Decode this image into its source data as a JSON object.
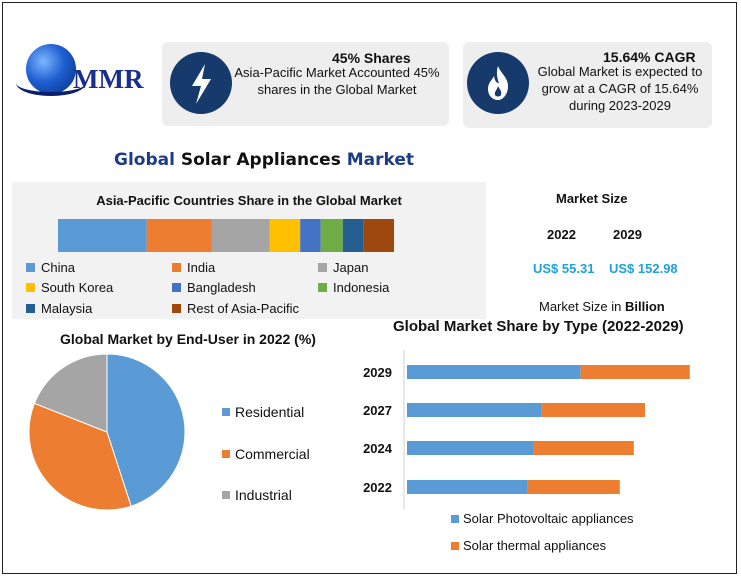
{
  "logo": {
    "text": "MMR"
  },
  "cards": [
    {
      "title": "45% Shares",
      "text": [
        "Asia-Pacific Market Accounted 45%",
        "shares in the Global Market"
      ],
      "icon": "lightning-icon"
    },
    {
      "title": "15.64% CAGR",
      "text": [
        "Global Market is expected to",
        "grow at a CAGR of 15.64%",
        "during 2023-2029"
      ],
      "icon": "flame-icon"
    }
  ],
  "main_title": {
    "part1": "Global",
    "part2": "Solar Appliances",
    "part3": "Market"
  },
  "market_size": {
    "title": "Market Size",
    "years": [
      "2022",
      "2029"
    ],
    "values": [
      "US$ 55.31",
      "US$ 152.98"
    ],
    "unit_label": "Market Size in",
    "unit_bold": "Billion"
  },
  "colors": {
    "blue": "#5b9bd5",
    "orange": "#ed7d31",
    "gray": "#a5a5a5",
    "yellow": "#ffc000",
    "royal": "#4472c4",
    "green": "#70ad47",
    "navy": "#255e91",
    "brown": "#9e480e"
  },
  "chart_data": [
    {
      "type": "bar",
      "orientation": "horizontal-stacked-100",
      "title": "Asia-Pacific Countries Share in the Global Market",
      "series": [
        {
          "name": "China",
          "value": 26,
          "color": "#5b9bd5"
        },
        {
          "name": "India",
          "value": 19,
          "color": "#ed7d31"
        },
        {
          "name": "Japan",
          "value": 17,
          "color": "#a5a5a5"
        },
        {
          "name": "South Korea",
          "value": 9,
          "color": "#ffc000"
        },
        {
          "name": "Bangladesh",
          "value": 6,
          "color": "#4472c4"
        },
        {
          "name": "Indonesia",
          "value": 6.5,
          "color": "#70ad47"
        },
        {
          "name": "Malaysia",
          "value": 6,
          "color": "#255e91"
        },
        {
          "name": "Rest of Asia-Pacific",
          "value": 9,
          "color": "#9e480e"
        }
      ],
      "legend_columns": [
        [
          "China",
          "South Korea",
          "Malaysia"
        ],
        [
          "India",
          "Bangladesh",
          "Rest of Asia-Pacific"
        ],
        [
          "Japan",
          "Indonesia"
        ]
      ]
    },
    {
      "type": "pie",
      "title": "Global Market by End-User in 2022 (%)",
      "slices": [
        {
          "name": "Residential",
          "value": 45,
          "color": "#5b9bd5"
        },
        {
          "name": "Commercial",
          "value": 36,
          "color": "#ed7d31"
        },
        {
          "name": "Industrial",
          "value": 19,
          "color": "#a5a5a5"
        }
      ]
    },
    {
      "type": "bar",
      "orientation": "horizontal-stacked",
      "title": "Global Market Share by Type (2022-2029)",
      "categories": [
        "2029",
        "2027",
        "2024",
        "2022"
      ],
      "series": [
        {
          "name": "Solar Photovoltaic appliances",
          "values": [
            62,
            48,
            45,
            43
          ],
          "color": "#5b9bd5"
        },
        {
          "name": "Solar thermal appliances",
          "values": [
            39,
            37,
            36,
            33
          ],
          "color": "#ed7d31"
        }
      ],
      "xlim": [
        0,
        115
      ]
    }
  ]
}
